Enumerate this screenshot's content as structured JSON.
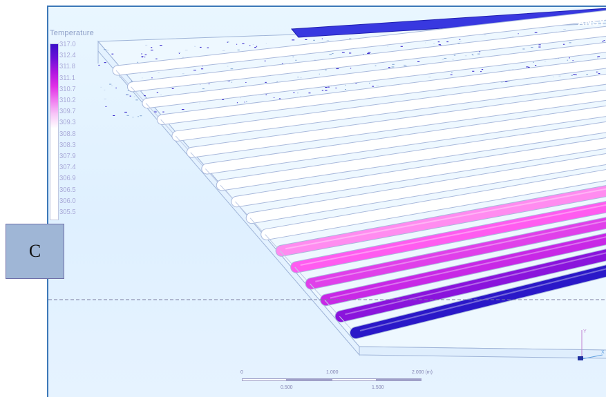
{
  "app": {
    "brand": "ANSYS"
  },
  "legend": {
    "title": "Temperature",
    "labels": [
      "317.0",
      "312.4",
      "311.8",
      "311.1",
      "310.7",
      "310.2",
      "309.7",
      "309.3",
      "308.8",
      "308.3",
      "307.9",
      "307.4",
      "306.9",
      "306.5",
      "306.0",
      "305.5"
    ],
    "colors": {
      "top": "#3a10c8",
      "upper": "#b018e0",
      "middle": "#f07cf0",
      "bottom": "#ffffff"
    }
  },
  "panel_label": "C",
  "scale": {
    "upper_labels": [
      "0",
      "1.000",
      "2.000 (m)"
    ],
    "lower_labels": [
      "0.500",
      "1.500"
    ]
  },
  "channels": {
    "count": 17,
    "colors": [
      "#ffffff",
      "#ffffff",
      "#ffffff",
      "#ffffff",
      "#ffffff",
      "#ffffff",
      "#ffffff",
      "#ffffff",
      "#ffffff",
      "#ffffff",
      "#ffffff",
      "#ff8cf0",
      "#ff5cf0",
      "#e040ea",
      "#c828e6",
      "#8a14dc",
      "#2a18c8"
    ],
    "top_pipe_color": "#3838e0"
  },
  "axis_triad": {
    "labels": [
      "Y",
      "X"
    ]
  }
}
